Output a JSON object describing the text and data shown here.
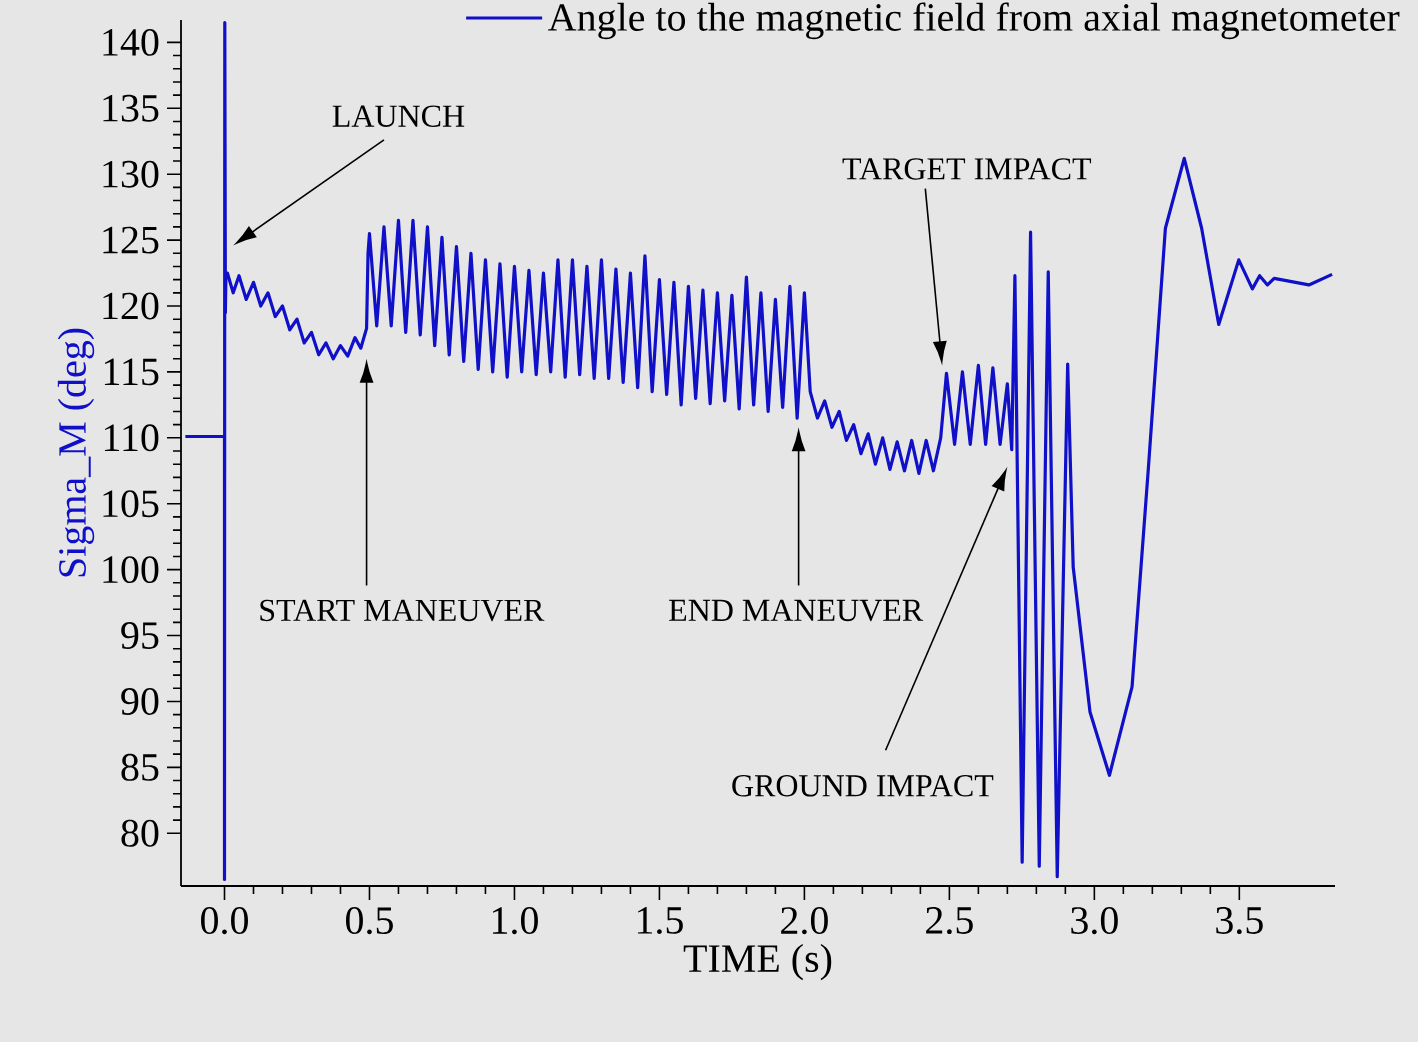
{
  "chart_data": {
    "type": "line",
    "xlabel": "TIME (s)",
    "ylabel": "Sigma_M (deg)",
    "xlim": [
      -0.15,
      3.83
    ],
    "ylim": [
      76,
      141.7
    ],
    "xticks": [
      {
        "value": 0,
        "label": "0.0"
      },
      {
        "value": 0.5,
        "label": "0.5"
      },
      {
        "value": 1,
        "label": "1.0"
      },
      {
        "value": 1.5,
        "label": "1.5"
      },
      {
        "value": 2,
        "label": "2.0"
      },
      {
        "value": 2.5,
        "label": "2.5"
      },
      {
        "value": 3,
        "label": "3.0"
      },
      {
        "value": 3.5,
        "label": "3.5"
      }
    ],
    "yticks": [
      80,
      85,
      90,
      95,
      100,
      105,
      110,
      115,
      120,
      125,
      130,
      135,
      140
    ],
    "grid": false,
    "legend": "top right",
    "marker": "none",
    "line_style": "solid",
    "series": [
      {
        "name": "Angle to the magnetic field from axial magnetometer",
        "color": "#1010c8",
        "x": [
          -0.135,
          0.0,
          0.0,
          0.001,
          0.003,
          0.005,
          0.01,
          0.03,
          0.05,
          0.075,
          0.1,
          0.125,
          0.15,
          0.175,
          0.2,
          0.225,
          0.25,
          0.275,
          0.3,
          0.325,
          0.35,
          0.375,
          0.4,
          0.425,
          0.45,
          0.47,
          0.49,
          0.495,
          0.5,
          0.525,
          0.55,
          0.575,
          0.6,
          0.625,
          0.65,
          0.675,
          0.7,
          0.725,
          0.75,
          0.775,
          0.8,
          0.825,
          0.85,
          0.875,
          0.9,
          0.925,
          0.95,
          0.975,
          1.0,
          1.025,
          1.05,
          1.075,
          1.1,
          1.125,
          1.15,
          1.175,
          1.2,
          1.225,
          1.25,
          1.275,
          1.3,
          1.325,
          1.35,
          1.375,
          1.4,
          1.425,
          1.45,
          1.475,
          1.5,
          1.525,
          1.55,
          1.575,
          1.6,
          1.625,
          1.65,
          1.675,
          1.7,
          1.725,
          1.75,
          1.775,
          1.8,
          1.825,
          1.85,
          1.875,
          1.9,
          1.925,
          1.95,
          1.975,
          2.0,
          2.02,
          2.045,
          2.07,
          2.095,
          2.12,
          2.145,
          2.17,
          2.195,
          2.22,
          2.245,
          2.27,
          2.295,
          2.32,
          2.345,
          2.37,
          2.395,
          2.42,
          2.445,
          2.47,
          2.49,
          2.518,
          2.545,
          2.572,
          2.6,
          2.625,
          2.65,
          2.675,
          2.7,
          2.715,
          2.726,
          2.751,
          2.78,
          2.81,
          2.841,
          2.872,
          2.908,
          2.927,
          2.985,
          3.052,
          3.13,
          3.186,
          3.245,
          3.31,
          3.37,
          3.429,
          3.498,
          3.545,
          3.57,
          3.597,
          3.62,
          3.74,
          3.82
        ],
        "values": [
          110.1,
          110.1,
          76.5,
          141.5,
          119.5,
          122.5,
          122.5,
          121.0,
          122.3,
          120.5,
          121.8,
          120.0,
          121.0,
          119.2,
          120.0,
          118.2,
          119.0,
          117.2,
          118.0,
          116.3,
          117.2,
          116.0,
          117.0,
          116.2,
          117.6,
          116.8,
          118.3,
          124.0,
          125.5,
          118.5,
          126.0,
          118.5,
          126.5,
          118.0,
          126.5,
          117.8,
          126.0,
          117.0,
          125.2,
          116.3,
          124.5,
          115.8,
          124.0,
          115.2,
          123.5,
          115.0,
          123.2,
          114.6,
          123.0,
          115.0,
          122.7,
          114.8,
          122.5,
          115.0,
          123.5,
          114.6,
          123.5,
          114.8,
          123.0,
          114.5,
          123.5,
          114.5,
          122.8,
          114.2,
          122.5,
          113.8,
          123.8,
          113.5,
          122.0,
          113.3,
          121.8,
          112.5,
          121.5,
          113.0,
          121.2,
          112.6,
          121.0,
          112.8,
          120.8,
          112.2,
          122.2,
          112.5,
          121.0,
          112.0,
          120.5,
          112.3,
          121.5,
          111.5,
          121.0,
          113.5,
          111.5,
          112.8,
          110.8,
          112.0,
          109.8,
          111.0,
          108.8,
          110.3,
          108.0,
          110.0,
          107.6,
          109.7,
          107.5,
          109.8,
          107.3,
          109.8,
          107.5,
          110.0,
          114.9,
          109.5,
          115.0,
          109.5,
          115.5,
          109.5,
          115.3,
          109.5,
          114.1,
          109.1,
          122.3,
          77.8,
          125.6,
          77.5,
          122.6,
          76.7,
          115.6,
          100.2,
          89.2,
          84.4,
          91.1,
          107.6,
          125.9,
          131.2,
          125.9,
          118.6,
          123.5,
          121.3,
          122.3,
          121.6,
          122.1,
          121.6,
          122.4
        ]
      }
    ],
    "annotations": [
      "LAUNCH",
      "START MANEUVER",
      "END MANEUVER",
      "TARGET IMPACT",
      "GROUND IMPACT"
    ]
  }
}
